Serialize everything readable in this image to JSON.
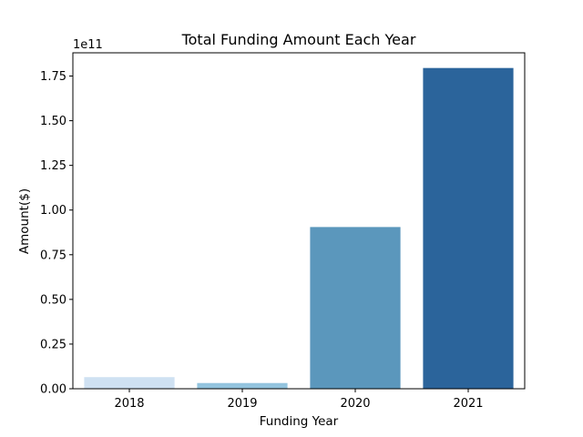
{
  "chart_data": {
    "type": "bar",
    "title": "Total Funding Amount Each Year",
    "xlabel": "Funding Year",
    "ylabel": "Amount($)",
    "y_offset_label": "1e11",
    "categories": [
      "2018",
      "2019",
      "2020",
      "2021"
    ],
    "values": [
      6500000000.0,
      3200000000.0,
      90500000000.0,
      179500000000.0
    ],
    "colors": [
      "#cfe1f2",
      "#93c4de",
      "#5b97bc",
      "#2b649b"
    ],
    "ylim": [
      0,
      188000000000.0
    ],
    "yticks": [
      0,
      25000000000.0,
      50000000000.0,
      75000000000.0,
      100000000000.0,
      125000000000.0,
      150000000000.0,
      175000000000.0
    ],
    "ytick_labels": [
      "0.00",
      "0.25",
      "0.50",
      "0.75",
      "1.00",
      "1.25",
      "1.50",
      "1.75"
    ],
    "grid": false,
    "legend": "none"
  }
}
